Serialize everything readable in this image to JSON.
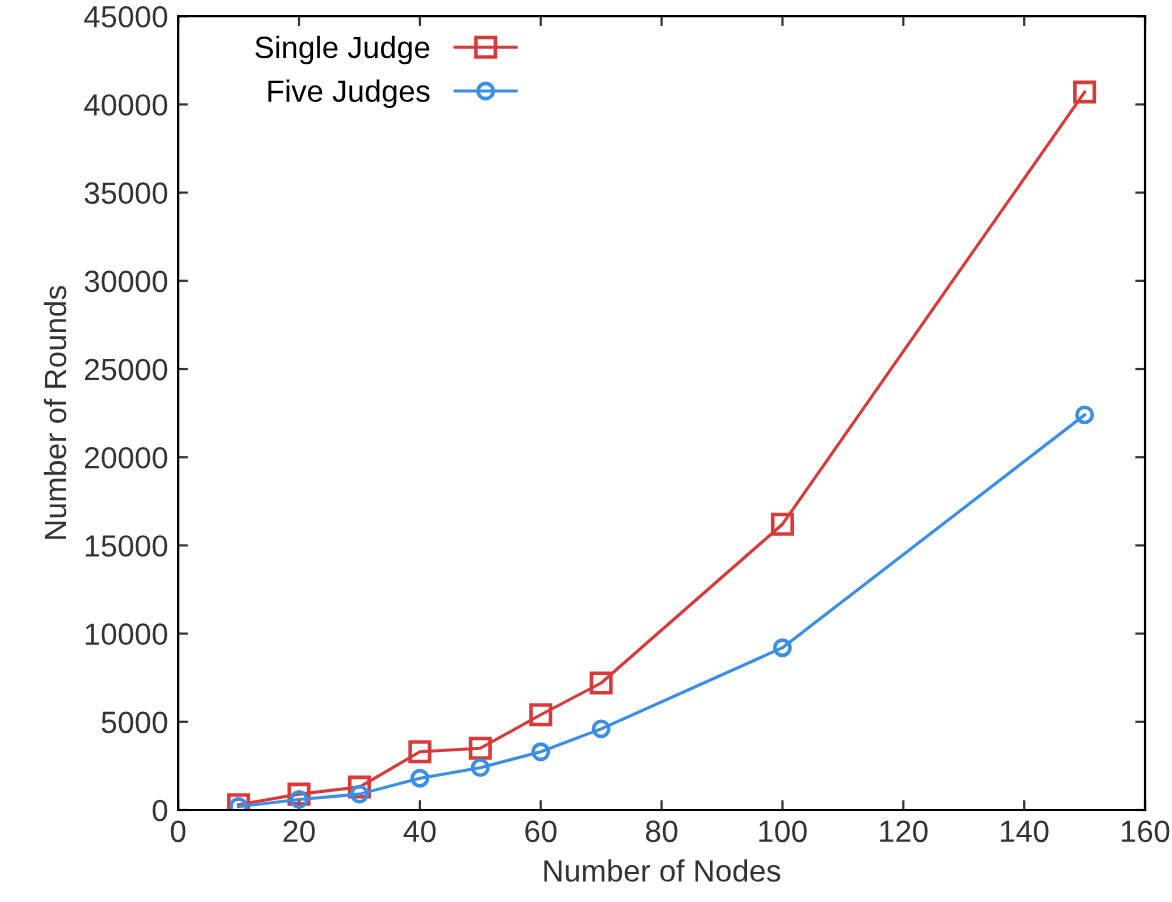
{
  "chart_data": {
    "type": "line",
    "xlabel": "Number of Nodes",
    "ylabel": "Number of Rounds",
    "x": [
      10,
      20,
      30,
      40,
      50,
      60,
      70,
      100,
      150
    ],
    "series": [
      {
        "name": "Single Judge",
        "color": "#d83a3a",
        "marker": "square",
        "values": [
          300,
          900,
          1300,
          3300,
          3500,
          5400,
          7200,
          16200,
          40700
        ]
      },
      {
        "name": "Five Judges",
        "color": "#3a8ee6",
        "marker": "circle",
        "values": [
          200,
          600,
          900,
          1800,
          2400,
          3300,
          4600,
          9200,
          22400
        ]
      }
    ],
    "xlim": [
      0,
      160
    ],
    "xticks": [
      0,
      20,
      40,
      60,
      80,
      100,
      120,
      140,
      160
    ],
    "ylim": [
      0,
      45000
    ],
    "yticks": [
      0,
      5000,
      10000,
      15000,
      20000,
      25000,
      30000,
      35000,
      40000,
      45000
    ],
    "legend": "top left",
    "grid": false,
    "line_style": "solid"
  }
}
